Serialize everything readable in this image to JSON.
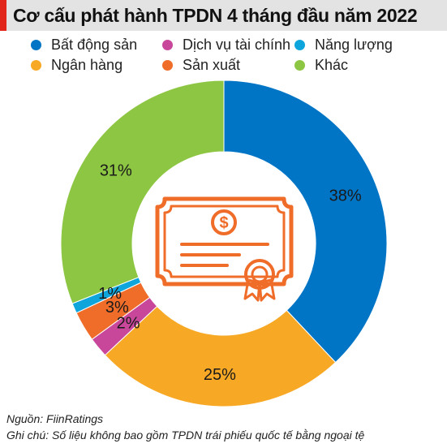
{
  "title": "Cơ cấu phát hành TPDN 4 tháng đầu năm 2022",
  "legend": [
    {
      "label": "Bất động sản",
      "color": "#0074c5"
    },
    {
      "label": "Dịch vụ tài chính",
      "color": "#c8479a"
    },
    {
      "label": "Năng lượng",
      "color": "#0ea5dd"
    },
    {
      "label": "Ngân hàng",
      "color": "#f7a824"
    },
    {
      "label": "Sản xuất",
      "color": "#ef6c29"
    },
    {
      "label": "Khác",
      "color": "#8dc642"
    }
  ],
  "chart_data": {
    "type": "pie",
    "donut": true,
    "categories": [
      "Bất động sản",
      "Ngân hàng",
      "Dịch vụ tài chính",
      "Sản xuất",
      "Năng lượng",
      "Khác"
    ],
    "values": [
      38,
      25,
      2,
      3,
      1,
      31
    ],
    "labels": [
      "38%",
      "25%",
      "2%",
      "3%",
      "1%",
      "31%"
    ],
    "colors": [
      "#0074c5",
      "#f7a824",
      "#c8479a",
      "#ef6c29",
      "#0ea5dd",
      "#8dc642"
    ],
    "legend_position": "top",
    "center_icon": "certificate-icon",
    "icon_color": "#ef6c29"
  },
  "footer": {
    "source": "Nguồn: FiinRatings",
    "note": "Ghi chú: Số liệu không bao gồm TPDN trái phiếu quốc tế bằng ngoại tệ"
  }
}
